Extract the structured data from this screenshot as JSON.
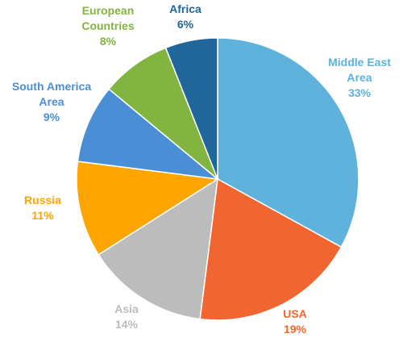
{
  "chart_data": {
    "type": "pie",
    "title": "",
    "start_angle_deg": 0,
    "direction": "clockwise",
    "slices": [
      {
        "label_lines": [
          "Middle East",
          "Area"
        ],
        "value": 33,
        "value_label": "33%",
        "color": "#5eb2dc"
      },
      {
        "label_lines": [
          "USA"
        ],
        "value": 19,
        "value_label": "19%",
        "color": "#f06530"
      },
      {
        "label_lines": [
          "Asia"
        ],
        "value": 14,
        "value_label": "14%",
        "color": "#bcbcbc"
      },
      {
        "label_lines": [
          "Russia"
        ],
        "value": 11,
        "value_label": "11%",
        "color": "#ffa500"
      },
      {
        "label_lines": [
          "South America",
          "Area"
        ],
        "value": 9,
        "value_label": "9%",
        "color": "#4a8fd6"
      },
      {
        "label_lines": [
          "European",
          "Countries"
        ],
        "value": 8,
        "value_label": "8%",
        "color": "#82b440"
      },
      {
        "label_lines": [
          "Africa"
        ],
        "value": 6,
        "value_label": "6%",
        "color": "#21669a"
      }
    ]
  }
}
